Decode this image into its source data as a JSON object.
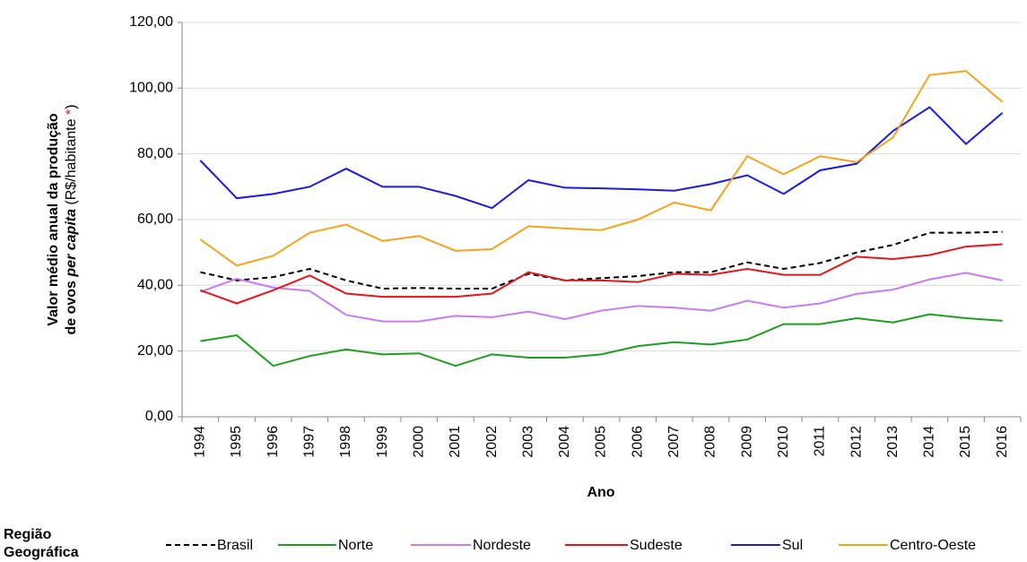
{
  "chart_data": {
    "type": "line",
    "y_label": [
      "Valor médio anual da produção",
      "de ovos ",
      "per capita",
      " (R$/habitante ",
      "*",
      ")"
    ],
    "x_label": "Ano",
    "categories": [
      "1994",
      "1995",
      "1996",
      "1997",
      "1998",
      "1999",
      "2000",
      "2001",
      "2002",
      "2003",
      "2004",
      "2005",
      "2006",
      "2007",
      "2008",
      "2009",
      "2010",
      "2011",
      "2012",
      "2013",
      "2014",
      "2015",
      "2016"
    ],
    "ylim": [
      0,
      120
    ],
    "yticks": [
      {
        "value": 0,
        "label": "0,00"
      },
      {
        "value": 20,
        "label": "20,00"
      },
      {
        "value": 40,
        "label": "40,00"
      },
      {
        "value": 60,
        "label": "60,00"
      },
      {
        "value": 80,
        "label": "80,00"
      },
      {
        "value": 100,
        "label": "100,00"
      },
      {
        "value": 120,
        "label": "120,00"
      }
    ],
    "grid": true,
    "legend_title": [
      "Região",
      "Geográfica"
    ],
    "series": [
      {
        "name": "Brasil",
        "color": "#000000",
        "dash": true,
        "values": [
          44,
          41.5,
          42.5,
          45,
          41.5,
          39,
          39.2,
          39,
          39,
          43.5,
          41.5,
          42.2,
          42.8,
          44,
          44,
          47,
          45,
          46.8,
          50,
          52.3,
          56,
          56,
          56.3
        ]
      },
      {
        "name": "Norte",
        "color": "#1e9e1e",
        "values": [
          23,
          24.8,
          15.5,
          18.5,
          20.5,
          19,
          19.3,
          15.5,
          19,
          18,
          18,
          19,
          21.5,
          22.7,
          22,
          23.5,
          28.2,
          28.2,
          30,
          28.7,
          31.2,
          30,
          29.2
        ]
      },
      {
        "name": "Nordeste",
        "color": "#c77cf2",
        "values": [
          38,
          42,
          39.3,
          38.3,
          31,
          29,
          29,
          30.7,
          30.3,
          32,
          29.7,
          32.3,
          33.7,
          33.2,
          32.3,
          35.3,
          33.2,
          34.5,
          37.4,
          38.7,
          41.8,
          43.8,
          41.5
        ]
      },
      {
        "name": "Sudeste",
        "color": "#e8141c",
        "values": [
          38.5,
          34.5,
          38.5,
          43,
          37.5,
          36.5,
          36.5,
          36.5,
          37.5,
          44,
          41.5,
          41.5,
          41,
          43.5,
          43.2,
          45,
          43.2,
          43.2,
          48.7,
          48,
          49.2,
          51.8,
          52.5
        ]
      },
      {
        "name": "Sul",
        "color": "#1a1ae6",
        "values": [
          78,
          66.5,
          67.8,
          70,
          75.5,
          70,
          70,
          67.2,
          63.5,
          72,
          69.7,
          69.5,
          69.2,
          68.8,
          70.8,
          73.5,
          67.8,
          75,
          77,
          87,
          94.2,
          83,
          92.5
        ]
      },
      {
        "name": "Centro-Oeste",
        "color": "#f7a21b",
        "values": [
          54,
          46,
          49,
          56,
          58.5,
          53.5,
          55,
          50.5,
          51,
          58,
          57.3,
          56.8,
          60,
          65.2,
          62.8,
          79.3,
          73.8,
          79.3,
          77.5,
          85,
          104,
          105.2,
          95.8
        ]
      }
    ]
  }
}
